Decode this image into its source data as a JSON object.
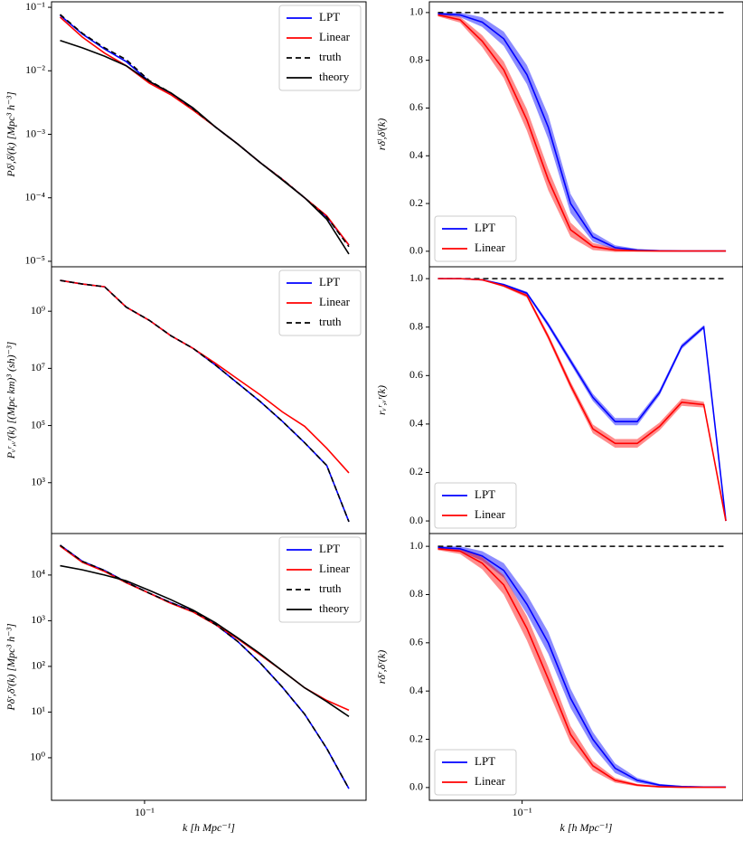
{
  "chart_data": [
    {
      "type": "line",
      "xscale": "log",
      "yscale": "log",
      "legend": "upper right",
      "y_label": "Pδˡ,δˡ(k) [Mpc³ h⁻³]",
      "x": [
        0.05,
        0.06,
        0.072,
        0.086,
        0.104,
        0.124,
        0.149,
        0.179,
        0.215,
        0.258,
        0.31,
        0.372,
        0.446,
        0.535
      ],
      "xlim": [
        0.0466,
        0.616
      ],
      "ylim": [
        8.2e-06,
        0.122
      ],
      "yticks": [
        {
          "value": 0.1,
          "label": "10⁻¹"
        },
        {
          "value": 0.01,
          "label": "10⁻²"
        },
        {
          "value": 0.001,
          "label": "10⁻³"
        },
        {
          "value": 0.0001,
          "label": "10⁻⁴"
        },
        {
          "value": 1e-05,
          "label": "10⁻⁵"
        }
      ],
      "series": [
        {
          "name": "LPT",
          "color": "#0000ff",
          "values": [
            0.075,
            0.038,
            0.022,
            0.014,
            0.0068,
            0.0044,
            0.0025,
            0.0013,
            0.0007,
            0.00036,
            0.000195,
            0.0001,
            5e-05,
            1.8e-05
          ]
        },
        {
          "name": "Linear",
          "color": "#ff0000",
          "values": [
            0.07,
            0.034,
            0.019,
            0.012,
            0.0064,
            0.0042,
            0.0024,
            0.0013,
            0.0007,
            0.00036,
            0.000195,
            0.0001,
            5.2e-05,
            1.8e-05
          ]
        },
        {
          "name": "truth",
          "color": "#000000",
          "dashed": true,
          "values": [
            0.077,
            0.039,
            0.023,
            0.015,
            0.007,
            0.0045,
            0.0025,
            0.0013,
            0.0007,
            0.00036,
            0.000195,
            0.0001,
            5e-05,
            1.7e-05
          ]
        },
        {
          "name": "theory",
          "color": "#000000",
          "values": [
            0.03,
            0.023,
            0.017,
            0.012,
            0.0068,
            0.0045,
            0.0026,
            0.0013,
            0.0007,
            0.00036,
            0.00019,
            0.0001,
            4.6e-05,
            1.3e-05
          ]
        }
      ]
    },
    {
      "type": "line",
      "xscale": "log",
      "yscale": "linear",
      "legend": "lower left",
      "y_label": "rδˡ,δˡ(k)",
      "x": [
        0.05,
        0.06,
        0.072,
        0.086,
        0.104,
        0.124,
        0.149,
        0.179,
        0.215,
        0.258,
        0.31,
        0.372,
        0.446,
        0.535
      ],
      "xlim": [
        0.0466,
        0.616
      ],
      "ylim": [
        -0.065,
        1.045
      ],
      "yticks": [
        {
          "value": 0,
          "label": "0.0"
        },
        0.2,
        0.4,
        0.6,
        0.8,
        {
          "value": 1,
          "label": "1.0"
        }
      ],
      "hline": 1,
      "series": [
        {
          "name": "LPT",
          "color": "#0000ff",
          "values": [
            0.995,
            0.99,
            0.96,
            0.89,
            0.74,
            0.52,
            0.2,
            0.06,
            0.015,
            0.005,
            0.002,
            0.001,
            0.001,
            0.001
          ],
          "band": [
            0.005,
            0.01,
            0.02,
            0.03,
            0.04,
            0.05,
            0.04,
            0.02,
            0.01,
            0.005,
            0.003,
            0.002,
            0.002,
            0.002
          ]
        },
        {
          "name": "Linear",
          "color": "#ff0000",
          "values": [
            0.99,
            0.97,
            0.88,
            0.76,
            0.55,
            0.3,
            0.09,
            0.02,
            0.005,
            0.002,
            0.001,
            0.001,
            0.001,
            0.001
          ],
          "band": [
            0.006,
            0.012,
            0.025,
            0.035,
            0.045,
            0.045,
            0.03,
            0.015,
            0.008,
            0.004,
            0.003,
            0.002,
            0.002,
            0.002
          ]
        }
      ]
    },
    {
      "type": "line",
      "xscale": "log",
      "yscale": "log",
      "legend": "upper right",
      "y_label": "Pᵥʳ,ᵥʳ(k) [(Mpc km)³ (sh)⁻³]",
      "x": [
        0.05,
        0.06,
        0.072,
        0.086,
        0.104,
        0.124,
        0.149,
        0.179,
        0.215,
        0.258,
        0.31,
        0.372,
        0.446,
        0.535
      ],
      "xlim": [
        0.0466,
        0.616
      ],
      "ylim": [
        16.6,
        36000000000.0
      ],
      "yticks": [
        {
          "value": 1000000000.0,
          "label": "10⁹"
        },
        {
          "value": 10000000.0,
          "label": "10⁷"
        },
        {
          "value": 100000.0,
          "label": "10⁵"
        },
        {
          "value": 1000.0,
          "label": "10³"
        }
      ],
      "series": [
        {
          "name": "LPT",
          "color": "#0000ff",
          "values": [
            12000000000.0,
            9000000000.0,
            7200000000.0,
            1400000000.0,
            480000000.0,
            140000000.0,
            50000000.0,
            13000000.0,
            3000000.0,
            700000.0,
            140000.0,
            25000.0,
            4000.0,
            43
          ]
        },
        {
          "name": "Linear",
          "color": "#ff0000",
          "values": [
            12000000000.0,
            9000000000.0,
            7200000000.0,
            1400000000.0,
            480000000.0,
            140000000.0,
            50000000.0,
            15000000.0,
            4200000.0,
            1200000.0,
            300000.0,
            94000.0,
            16000.0,
            2200.0
          ]
        },
        {
          "name": "truth",
          "color": "#000000",
          "dashed": true,
          "values": [
            12000000000.0,
            9000000000.0,
            7200000000.0,
            1400000000.0,
            480000000.0,
            140000000.0,
            50000000.0,
            13000000.0,
            3000000.0,
            700000.0,
            140000.0,
            25000.0,
            4000.0,
            43
          ]
        }
      ]
    },
    {
      "type": "line",
      "xscale": "log",
      "yscale": "linear",
      "legend": "lower left",
      "y_label": "rᵥʳ,ᵥʳ(k)",
      "x": [
        0.05,
        0.06,
        0.072,
        0.086,
        0.104,
        0.124,
        0.149,
        0.179,
        0.215,
        0.258,
        0.31,
        0.372,
        0.446,
        0.535
      ],
      "xlim": [
        0.0466,
        0.616
      ],
      "ylim": [
        -0.052,
        1.049
      ],
      "yticks": [
        {
          "value": 0,
          "label": "0.0"
        },
        0.2,
        0.4,
        0.6,
        0.8,
        {
          "value": 1,
          "label": "1.0"
        }
      ],
      "hline": 1,
      "series": [
        {
          "name": "LPT",
          "color": "#0000ff",
          "values": [
            1,
            1,
            0.995,
            0.975,
            0.94,
            0.81,
            0.66,
            0.51,
            0.41,
            0.41,
            0.53,
            0.72,
            0.8,
            0
          ],
          "band": [
            0.001,
            0.001,
            0.002,
            0.004,
            0.006,
            0.01,
            0.012,
            0.015,
            0.015,
            0.015,
            0.012,
            0.01,
            0.008,
            0.001
          ]
        },
        {
          "name": "Linear",
          "color": "#ff0000",
          "values": [
            1,
            1,
            0.995,
            0.97,
            0.93,
            0.76,
            0.56,
            0.38,
            0.32,
            0.32,
            0.39,
            0.49,
            0.48,
            0
          ],
          "band": [
            0.001,
            0.001,
            0.002,
            0.005,
            0.008,
            0.012,
            0.015,
            0.018,
            0.018,
            0.018,
            0.016,
            0.015,
            0.012,
            0.001
          ]
        }
      ]
    },
    {
      "type": "line",
      "xscale": "log",
      "yscale": "log",
      "legend": "upper right",
      "y_label": "Pδʳ,δʳ(k) [Mpc³ h⁻³]",
      "x_label": "k [h Mpc⁻¹]",
      "x": [
        0.05,
        0.06,
        0.072,
        0.086,
        0.104,
        0.124,
        0.149,
        0.179,
        0.215,
        0.258,
        0.31,
        0.372,
        0.446,
        0.535
      ],
      "xlim": [
        0.0466,
        0.616
      ],
      "ylim": [
        0.117,
        81000.0
      ],
      "xticks": [
        {
          "value": 0.1,
          "label": "10⁻¹"
        }
      ],
      "yticks": [
        {
          "value": 10000.0,
          "label": "10⁴"
        },
        {
          "value": 1000.0,
          "label": "10³"
        },
        {
          "value": 100,
          "label": "10²"
        },
        {
          "value": 10,
          "label": "10¹"
        },
        {
          "value": 1,
          "label": "10⁰"
        }
      ],
      "series": [
        {
          "name": "LPT",
          "color": "#0000ff",
          "values": [
            45000.0,
            20000.0,
            12600.0,
            7000.0,
            4000.0,
            2500.0,
            1600.0,
            830,
            350,
            120,
            35,
            9,
            1.6,
            0.21
          ]
        },
        {
          "name": "Linear",
          "color": "#ff0000",
          "values": [
            43000.0,
            19000.0,
            12000.0,
            6800.0,
            4000.0,
            2400.0,
            1550.0,
            820,
            400,
            180,
            80,
            34,
            18,
            11
          ]
        },
        {
          "name": "truth",
          "color": "#000000",
          "dashed": true,
          "values": [
            45000.0,
            20000.0,
            12600.0,
            7000.0,
            4000.0,
            2500.0,
            1600.0,
            830,
            350,
            120,
            35,
            9,
            1.6,
            0.21
          ]
        },
        {
          "name": "theory",
          "color": "#000000",
          "values": [
            16000.0,
            13000.0,
            10000.0,
            7500.0,
            4600.0,
            2900.0,
            1700.0,
            900,
            420,
            190,
            80,
            34,
            17,
            8
          ]
        }
      ]
    },
    {
      "type": "line",
      "xscale": "log",
      "yscale": "linear",
      "legend": "lower left",
      "y_label": "rδʳ,δʳ(k)",
      "x_label": "k [h Mpc⁻¹]",
      "x": [
        0.05,
        0.06,
        0.072,
        0.086,
        0.104,
        0.124,
        0.149,
        0.179,
        0.215,
        0.258,
        0.31,
        0.372,
        0.446,
        0.535
      ],
      "xlim": [
        0.0466,
        0.616
      ],
      "ylim": [
        -0.053,
        1.053
      ],
      "xticks": [
        {
          "value": 0.1,
          "label": "10⁻¹"
        }
      ],
      "yticks": [
        {
          "value": 0,
          "label": "0.0"
        },
        0.2,
        0.4,
        0.6,
        0.8,
        {
          "value": 1,
          "label": "1.0"
        }
      ],
      "hline": 1,
      "series": [
        {
          "name": "LPT",
          "color": "#0000ff",
          "values": [
            0.995,
            0.99,
            0.96,
            0.9,
            0.76,
            0.6,
            0.37,
            0.2,
            0.08,
            0.03,
            0.01,
            0.004,
            0.002,
            0.002
          ],
          "band": [
            0.005,
            0.01,
            0.02,
            0.03,
            0.04,
            0.045,
            0.04,
            0.03,
            0.02,
            0.01,
            0.005,
            0.003,
            0.002,
            0.002
          ]
        },
        {
          "name": "Linear",
          "color": "#ff0000",
          "values": [
            0.99,
            0.98,
            0.93,
            0.84,
            0.66,
            0.45,
            0.22,
            0.09,
            0.03,
            0.01,
            0.003,
            0.001,
            0.001,
            0.001
          ],
          "band": [
            0.006,
            0.012,
            0.025,
            0.04,
            0.05,
            0.05,
            0.035,
            0.02,
            0.01,
            0.005,
            0.003,
            0.002,
            0.002,
            0.002
          ]
        }
      ]
    }
  ]
}
